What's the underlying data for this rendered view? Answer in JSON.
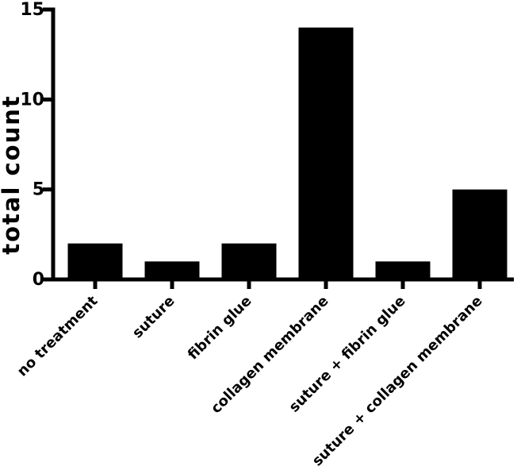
{
  "figure": {
    "background": "#ffffff",
    "bar_color": "#000000",
    "axis_color": "#000000",
    "text_color": "#000000"
  },
  "chart_data": {
    "type": "bar",
    "title": "",
    "xlabel": "",
    "ylabel": "total count",
    "categories": [
      "no treatment",
      "suture",
      "fibrin glue",
      "collagen membrane",
      "suture + fibrin glue",
      "suture + collagen membrane"
    ],
    "values": [
      2,
      1,
      2,
      14,
      1,
      5
    ],
    "ylim": [
      0,
      15
    ],
    "yticks": [
      0,
      5,
      10,
      15
    ],
    "grid": false,
    "legend": false,
    "bar_orientation": "vertical",
    "x_tick_label_rotation_deg": 45
  }
}
